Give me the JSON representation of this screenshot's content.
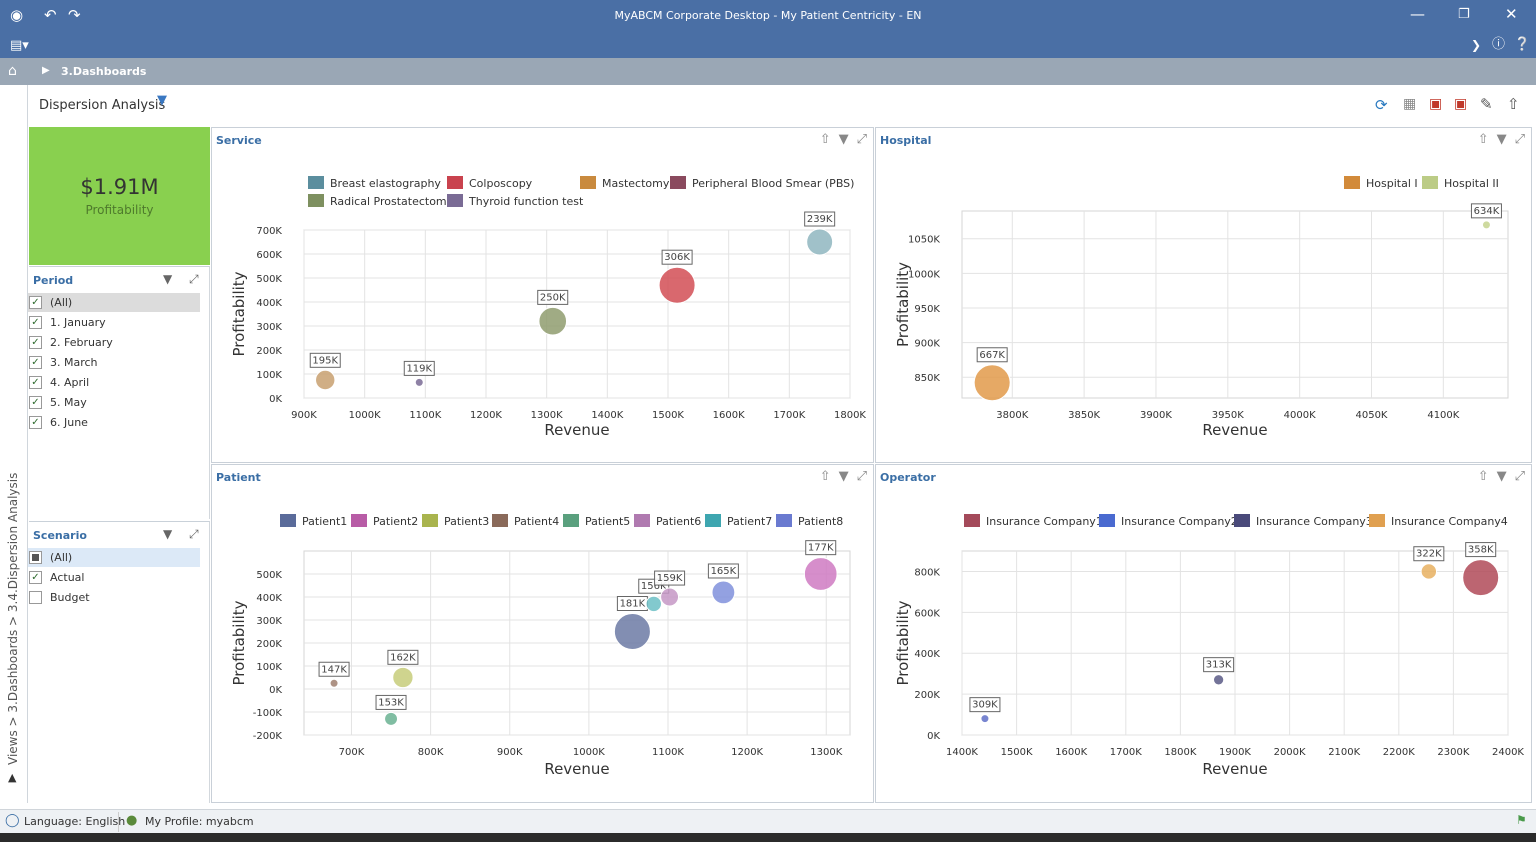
{
  "window": {
    "title": "MyABCM Corporate Desktop - My Patient Centricity - EN",
    "logo_icon": "app-logo-icon"
  },
  "breadcrumb": {
    "current": "3.Dashboards"
  },
  "views_path": "Views > 3.Dashboards > 3.4.Dispersion Analysis",
  "dashboard": {
    "title": "Dispersion Analysis"
  },
  "kpi": {
    "value": "$1.91M",
    "label": "Profitability"
  },
  "period_filter": {
    "title": "Period",
    "items": [
      {
        "label": "(All)",
        "checked": true
      },
      {
        "label": "1. January",
        "checked": true
      },
      {
        "label": "2. February",
        "checked": true
      },
      {
        "label": "3. March",
        "checked": true
      },
      {
        "label": "4. April",
        "checked": true
      },
      {
        "label": "5. May",
        "checked": true
      },
      {
        "label": "6. June",
        "checked": true
      }
    ]
  },
  "scenario_filter": {
    "title": "Scenario",
    "items": [
      {
        "label": "(All)",
        "checked": "partial"
      },
      {
        "label": "Actual",
        "checked": true
      },
      {
        "label": "Budget",
        "checked": false
      }
    ]
  },
  "status": {
    "language": "Language: English",
    "profile": "My Profile: myabcm"
  },
  "chart_data": [
    {
      "name": "Service",
      "type": "scatter",
      "xlabel": "Revenue",
      "ylabel": "Profitability",
      "xlim": [
        900000,
        1800000
      ],
      "ylim": [
        0,
        700000
      ],
      "xticks": [
        "900K",
        "1000K",
        "1100K",
        "1200K",
        "1300K",
        "1400K",
        "1500K",
        "1600K",
        "1700K",
        "1800K"
      ],
      "yticks": [
        "0K",
        "100K",
        "200K",
        "300K",
        "400K",
        "500K",
        "600K",
        "700K"
      ],
      "legend": [
        {
          "name": "Breast elastography",
          "color": "#5b8e9e"
        },
        {
          "name": "Colposcopy",
          "color": "#c9424e"
        },
        {
          "name": "Mastectomy",
          "color": "#c98a3e"
        },
        {
          "name": "Peripheral Blood Smear (PBS)",
          "color": "#8a4a5e"
        },
        {
          "name": "Radical Prostatectomy",
          "color": "#7e9060"
        },
        {
          "name": "Thyroid function test",
          "color": "#7a6b95"
        }
      ],
      "points": [
        {
          "x": 935000,
          "y": 75000,
          "size": 195,
          "label": "195K",
          "color": "#c8a070"
        },
        {
          "x": 1090000,
          "y": 65000,
          "size": 119,
          "label": "119K",
          "color": "#7a6b95"
        },
        {
          "x": 1310000,
          "y": 320000,
          "size": 250,
          "label": "250K",
          "color": "#8f9c6e"
        },
        {
          "x": 1515000,
          "y": 470000,
          "size": 306,
          "label": "306K",
          "color": "#d24d55"
        },
        {
          "x": 1750000,
          "y": 650000,
          "size": 239,
          "label": "239K",
          "color": "#8fb6c0"
        }
      ]
    },
    {
      "name": "Hospital",
      "type": "scatter",
      "xlabel": "Revenue",
      "ylabel": "Profitability",
      "xlim": [
        3765000,
        4145000
      ],
      "ylim": [
        820000,
        1090000
      ],
      "xticks": [
        "3800K",
        "3850K",
        "3900K",
        "3950K",
        "4000K",
        "4050K",
        "4100K"
      ],
      "yticks": [
        "850K",
        "900K",
        "950K",
        "1000K",
        "1050K"
      ],
      "legend": [
        {
          "name": "Hospital I",
          "color": "#d28a3a"
        },
        {
          "name": "Hospital II",
          "color": "#bccc86"
        }
      ],
      "points": [
        {
          "x": 3786000,
          "y": 842000,
          "size": 667,
          "label": "667K",
          "color": "#e29a4a"
        },
        {
          "x": 4130000,
          "y": 1070000,
          "size": 634,
          "label": "634K",
          "color": "#c5d38e"
        }
      ]
    },
    {
      "name": "Patient",
      "type": "scatter",
      "xlabel": "Revenue",
      "ylabel": "Profitability",
      "xlim": [
        640000,
        1330000
      ],
      "ylim": [
        -200000,
        600000
      ],
      "xticks": [
        "700K",
        "800K",
        "900K",
        "1000K",
        "1100K",
        "1200K",
        "1300K"
      ],
      "yticks": [
        "-200K",
        "-100K",
        "0K",
        "100K",
        "200K",
        "300K",
        "400K",
        "500K"
      ],
      "legend": [
        {
          "name": "Patient1",
          "color": "#5a6b9a"
        },
        {
          "name": "Patient2",
          "color": "#b85ca6"
        },
        {
          "name": "Patient3",
          "color": "#a9b44e"
        },
        {
          "name": "Patient4",
          "color": "#8a6a5a"
        },
        {
          "name": "Patient5",
          "color": "#5aa07e"
        },
        {
          "name": "Patient6",
          "color": "#b07ab0"
        },
        {
          "name": "Patient7",
          "color": "#3ea6b0"
        },
        {
          "name": "Patient8",
          "color": "#6a7ad0"
        }
      ],
      "points": [
        {
          "x": 678000,
          "y": 25000,
          "size": 147,
          "label": "147K",
          "color": "#a08070"
        },
        {
          "x": 765000,
          "y": 50000,
          "size": 162,
          "label": "162K",
          "color": "#c7cc7a"
        },
        {
          "x": 750000,
          "y": -130000,
          "size": 153,
          "label": "153K",
          "color": "#6ab292"
        },
        {
          "x": 1055000,
          "y": 250000,
          "size": 181,
          "label": "181K",
          "color": "#6c7aa4"
        },
        {
          "x": 1082000,
          "y": 370000,
          "size": 156,
          "label": "156K",
          "color": "#6cc0c6"
        },
        {
          "x": 1102000,
          "y": 400000,
          "size": 159,
          "label": "159K",
          "color": "#c698c6"
        },
        {
          "x": 1170000,
          "y": 420000,
          "size": 165,
          "label": "165K",
          "color": "#8090dc"
        },
        {
          "x": 1293000,
          "y": 500000,
          "size": 177,
          "label": "177K",
          "color": "#cf7ac2"
        }
      ]
    },
    {
      "name": "Operator",
      "type": "scatter",
      "xlabel": "Revenue",
      "ylabel": "Profitability",
      "xlim": [
        1400000,
        2400000
      ],
      "ylim": [
        0,
        900000
      ],
      "xticks": [
        "1400K",
        "1500K",
        "1600K",
        "1700K",
        "1800K",
        "1900K",
        "2000K",
        "2100K",
        "2200K",
        "2300K",
        "2400K"
      ],
      "yticks": [
        "0K",
        "200K",
        "400K",
        "600K",
        "800K"
      ],
      "legend": [
        {
          "name": "Insurance Company1",
          "color": "#a44a5a"
        },
        {
          "name": "Insurance Company2",
          "color": "#4a6ad0"
        },
        {
          "name": "Insurance Company3",
          "color": "#4a4a7a"
        },
        {
          "name": "Insurance Company4",
          "color": "#e0a050"
        }
      ],
      "points": [
        {
          "x": 1442000,
          "y": 80000,
          "size": 309,
          "label": "309K",
          "color": "#6070c8"
        },
        {
          "x": 1870000,
          "y": 270000,
          "size": 313,
          "label": "313K",
          "color": "#5a5a86"
        },
        {
          "x": 2255000,
          "y": 800000,
          "size": 322,
          "label": "322K",
          "color": "#e8b060"
        },
        {
          "x": 2350000,
          "y": 770000,
          "size": 358,
          "label": "358K",
          "color": "#b04a58"
        }
      ]
    }
  ]
}
